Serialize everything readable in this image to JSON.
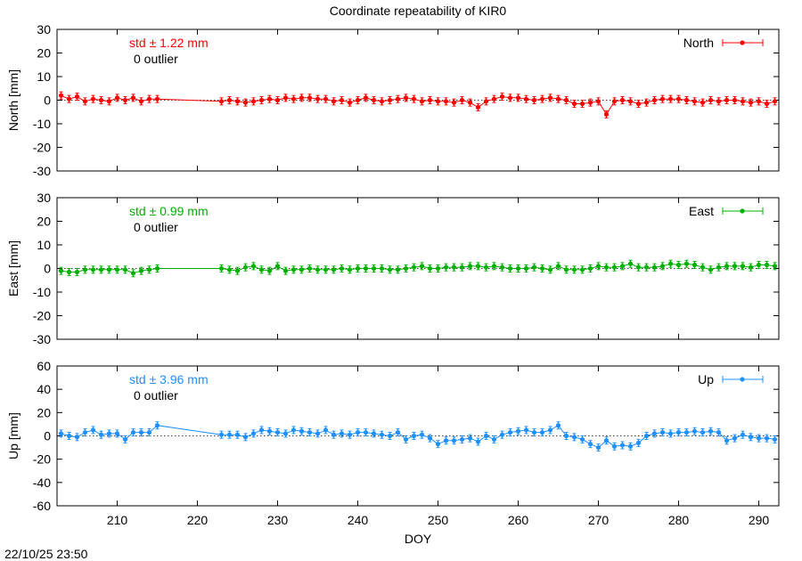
{
  "page_title": "Coordinate repeatability of KIR0",
  "timestamp": "22/10/25 23:50",
  "xlabel": "DOY",
  "xlim": [
    202.5,
    292.5
  ],
  "xticks": [
    210,
    220,
    230,
    240,
    250,
    260,
    270,
    280,
    290
  ],
  "chart_data": [
    {
      "type": "line",
      "component": "North",
      "ylabel": "North [mm]",
      "ylim": [
        -30,
        30
      ],
      "yticks": [
        -30,
        -20,
        -10,
        0,
        10,
        20,
        30
      ],
      "grid": false,
      "legend_placement": "top-right",
      "color": "#ff0000",
      "std_text": "std ± 1.22 mm",
      "outlier_text": "0 outlier",
      "series": [
        {
          "name": "North",
          "x": [
            203,
            204,
            205,
            206,
            207,
            208,
            209,
            210,
            211,
            212,
            213,
            214,
            215,
            223,
            224,
            225,
            226,
            227,
            228,
            229,
            230,
            231,
            232,
            233,
            234,
            235,
            236,
            237,
            238,
            239,
            240,
            241,
            242,
            243,
            244,
            245,
            246,
            247,
            248,
            249,
            250,
            251,
            252,
            253,
            254,
            255,
            256,
            257,
            258,
            259,
            260,
            261,
            262,
            263,
            264,
            265,
            266,
            267,
            268,
            269,
            270,
            271,
            272,
            273,
            274,
            275,
            276,
            277,
            278,
            279,
            280,
            281,
            282,
            283,
            284,
            285,
            286,
            287,
            288,
            289,
            290,
            291,
            292
          ],
          "y": [
            2,
            0.5,
            1.5,
            -0.5,
            0.5,
            0,
            -0.5,
            1,
            0,
            1,
            -0.5,
            0.5,
            0.5,
            -0.5,
            0,
            -0.5,
            -1,
            -0.5,
            0,
            0.5,
            0,
            1,
            0.5,
            1,
            1,
            0.5,
            0.5,
            -0.5,
            0,
            -1,
            0,
            1,
            0,
            -0.5,
            0,
            0.5,
            1,
            0.5,
            -0.5,
            0,
            -0.5,
            -0.5,
            -1,
            0,
            -1,
            -3,
            -0.5,
            0.5,
            1.5,
            1,
            1,
            0.5,
            0,
            0.5,
            1,
            0.5,
            0,
            -1.5,
            -1.5,
            -1,
            -0.5,
            -6,
            -0.5,
            0,
            -0.5,
            -1.5,
            -1,
            0,
            0.5,
            0.5,
            0.5,
            0,
            -0.5,
            -1,
            0,
            -0.5,
            0,
            0,
            -0.5,
            -1,
            -0.5,
            -1.5,
            -0.5
          ]
        }
      ]
    },
    {
      "type": "line",
      "component": "East",
      "ylabel": "East [mm]",
      "ylim": [
        -30,
        30
      ],
      "yticks": [
        -30,
        -20,
        -10,
        0,
        10,
        20,
        30
      ],
      "grid": false,
      "legend_placement": "top-right",
      "color": "#00b000",
      "std_text": "std ± 0.99 mm",
      "outlier_text": "0 outlier",
      "series": [
        {
          "name": "East",
          "x": [
            203,
            204,
            205,
            206,
            207,
            208,
            209,
            210,
            211,
            212,
            213,
            214,
            215,
            223,
            224,
            225,
            226,
            227,
            228,
            229,
            230,
            231,
            232,
            233,
            234,
            235,
            236,
            237,
            238,
            239,
            240,
            241,
            242,
            243,
            244,
            245,
            246,
            247,
            248,
            249,
            250,
            251,
            252,
            253,
            254,
            255,
            256,
            257,
            258,
            259,
            260,
            261,
            262,
            263,
            264,
            265,
            266,
            267,
            268,
            269,
            270,
            271,
            272,
            273,
            274,
            275,
            276,
            277,
            278,
            279,
            280,
            281,
            282,
            283,
            284,
            285,
            286,
            287,
            288,
            289,
            290,
            291,
            292
          ],
          "y": [
            -1,
            -1.5,
            -1.5,
            -0.5,
            -0.5,
            -0.5,
            -0.5,
            -0.5,
            -0.5,
            -2,
            -1,
            -0.5,
            0,
            0,
            -0.5,
            -1,
            0.5,
            1,
            -0.5,
            -1,
            1,
            -1,
            -0.5,
            -0.5,
            0,
            -0.5,
            -0.5,
            -0.5,
            0,
            -0.5,
            0,
            0,
            0,
            0,
            -0.5,
            -0.5,
            0,
            0.5,
            1,
            0,
            0,
            0.5,
            0.5,
            0.5,
            1,
            1,
            0.5,
            1,
            0.5,
            0,
            0,
            0,
            0.5,
            0,
            -0.5,
            1,
            -0.5,
            -0.5,
            -0.5,
            0,
            1,
            0.5,
            0.5,
            1,
            2,
            0.5,
            0.5,
            0.5,
            1,
            2,
            1.5,
            2,
            1.5,
            0.5,
            -0.5,
            0.5,
            1,
            1,
            1,
            0.5,
            1.5,
            1.5,
            1
          ]
        }
      ]
    },
    {
      "type": "line",
      "component": "Up",
      "ylabel": "Up [mm]",
      "ylim": [
        -60,
        60
      ],
      "yticks": [
        -60,
        -40,
        -20,
        0,
        20,
        40,
        60
      ],
      "grid": false,
      "legend_placement": "top-right",
      "color": "#1e90ff",
      "std_text": "std ± 3.96 mm",
      "outlier_text": "0 outlier",
      "series": [
        {
          "name": "Up",
          "x": [
            203,
            204,
            205,
            206,
            207,
            208,
            209,
            210,
            211,
            212,
            213,
            214,
            215,
            223,
            224,
            225,
            226,
            227,
            228,
            229,
            230,
            231,
            232,
            233,
            234,
            235,
            236,
            237,
            238,
            239,
            240,
            241,
            242,
            243,
            244,
            245,
            246,
            247,
            248,
            249,
            250,
            251,
            252,
            253,
            254,
            255,
            256,
            257,
            258,
            259,
            260,
            261,
            262,
            263,
            264,
            265,
            266,
            267,
            268,
            269,
            270,
            271,
            272,
            273,
            274,
            275,
            276,
            277,
            278,
            279,
            280,
            281,
            282,
            283,
            284,
            285,
            286,
            287,
            288,
            289,
            290,
            291,
            292
          ],
          "y": [
            2,
            0,
            -1,
            3,
            5,
            1,
            2,
            2,
            -3,
            3,
            3,
            3,
            9,
            1,
            1,
            1,
            -1,
            2,
            5,
            4,
            3,
            2,
            5,
            4,
            3,
            2,
            5,
            1,
            2,
            1,
            3,
            3,
            2,
            1,
            0,
            3,
            -3,
            0,
            1,
            -2,
            -7,
            -4,
            -4,
            -3,
            -2,
            -5,
            0,
            -3,
            1,
            3,
            4,
            5,
            3,
            3,
            5,
            9,
            0,
            -1,
            -3,
            -7,
            -10,
            -4,
            -9,
            -8,
            -9,
            -6,
            0,
            2,
            3,
            2,
            3,
            3,
            4,
            3,
            4,
            3,
            -4,
            -2,
            1,
            -1,
            -2,
            -2,
            -3
          ]
        }
      ]
    }
  ]
}
